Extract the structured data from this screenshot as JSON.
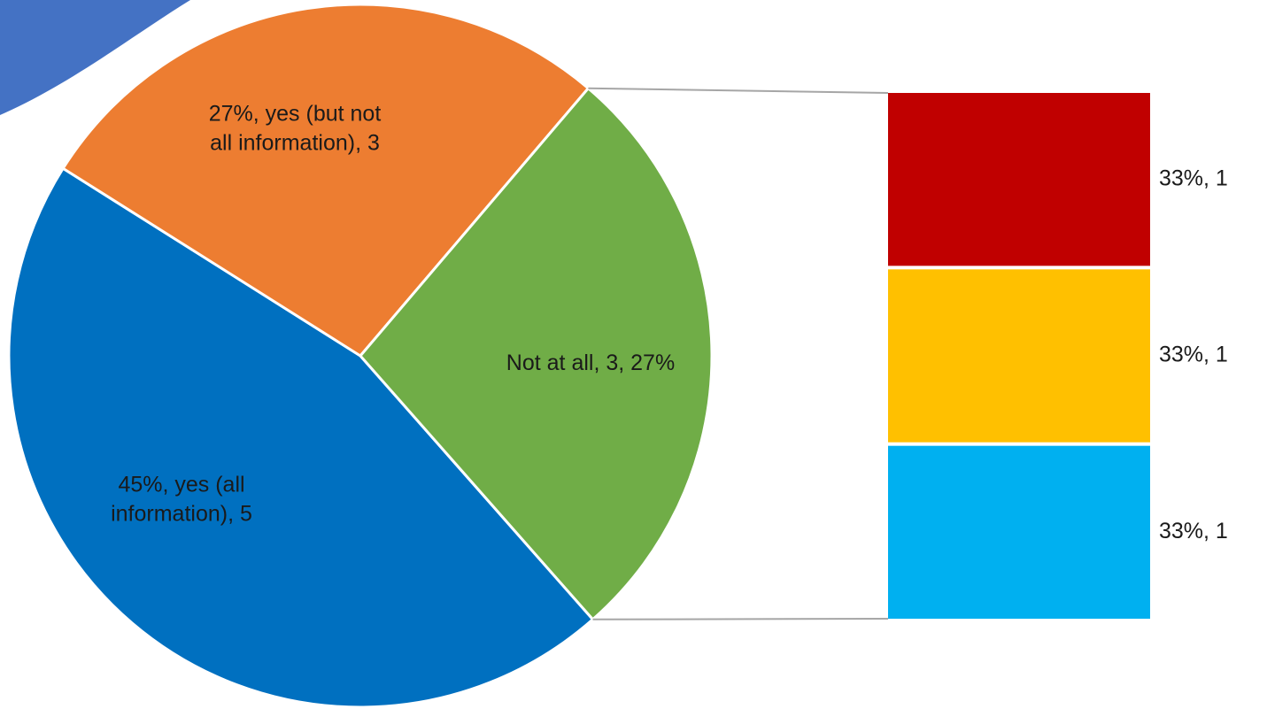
{
  "chart_data": {
    "type": "bar-of-pie",
    "pie": {
      "slices": [
        {
          "label_lines": [
            "45%, yes (all",
            "information), 5"
          ],
          "category": "yes (all information)",
          "value": 5,
          "percent": 45,
          "color": "#0070C0"
        },
        {
          "label_lines": [
            "27%, yes (but not",
            "all information), 3"
          ],
          "category": "yes (but not all information)",
          "value": 3,
          "percent": 27,
          "color": "#ED7D31"
        },
        {
          "label_lines": [
            "Not at all, 3, 27%"
          ],
          "category": "Not at all",
          "value": 3,
          "percent": 27,
          "color": "#70AD47"
        }
      ]
    },
    "bar": {
      "segments": [
        {
          "label": "33%, 1",
          "value": 1,
          "percent": 33,
          "color": "#C00000"
        },
        {
          "label": "33%, 1",
          "value": 1,
          "percent": 33,
          "color": "#FFC000"
        },
        {
          "label": "33%, 1",
          "value": 1,
          "percent": 33,
          "color": "#00B0F0"
        }
      ]
    },
    "connector_color": "#A6A6A6",
    "decoration_color": "#4472C4"
  }
}
